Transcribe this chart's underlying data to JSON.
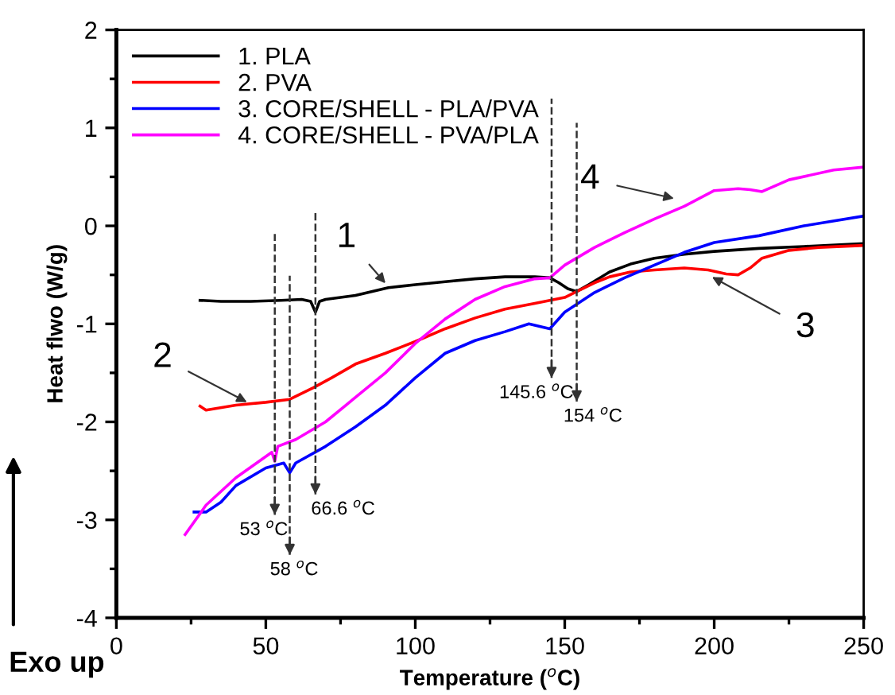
{
  "chart_data": {
    "type": "line",
    "xlabel": "Temperature ($^{o}$C)",
    "ylabel": "Heat flwo (W/g)",
    "xlim": [
      0,
      250
    ],
    "ylim": [
      -4,
      2
    ],
    "xticks": [
      0,
      50,
      100,
      150,
      200,
      250
    ],
    "yticks": [
      -4,
      -3,
      -2,
      -1,
      0,
      1,
      2
    ],
    "legend": "top left",
    "grid": false,
    "marker": "none",
    "line_style": "solid",
    "series": [
      {
        "name": "1. PLA",
        "color": "#000000",
        "x": [
          28,
          35,
          45,
          55,
          62,
          65,
          66.6,
          68,
          70,
          80,
          91,
          100,
          110,
          120,
          130,
          140,
          145,
          148,
          151,
          154,
          158,
          165,
          172,
          180,
          190,
          200,
          215,
          230,
          250
        ],
        "values": [
          -0.76,
          -0.77,
          -0.77,
          -0.76,
          -0.75,
          -0.77,
          -0.88,
          -0.77,
          -0.75,
          -0.71,
          -0.63,
          -0.6,
          -0.57,
          -0.54,
          -0.52,
          -0.52,
          -0.53,
          -0.58,
          -0.64,
          -0.67,
          -0.6,
          -0.47,
          -0.39,
          -0.33,
          -0.29,
          -0.26,
          -0.23,
          -0.21,
          -0.18
        ]
      },
      {
        "name": "2. PVA",
        "color": "#ff0000",
        "x": [
          28,
          30,
          40,
          50,
          58,
          66,
          72,
          80,
          90,
          100,
          110,
          120,
          130,
          140,
          145,
          150,
          154,
          160,
          165,
          172,
          180,
          190,
          198,
          204,
          208,
          212,
          216,
          225,
          235,
          250
        ],
        "values": [
          -1.84,
          -1.88,
          -1.83,
          -1.8,
          -1.77,
          -1.65,
          -1.55,
          -1.41,
          -1.3,
          -1.18,
          -1.05,
          -0.94,
          -0.85,
          -0.79,
          -0.76,
          -0.73,
          -0.67,
          -0.58,
          -0.52,
          -0.47,
          -0.45,
          -0.43,
          -0.45,
          -0.49,
          -0.5,
          -0.43,
          -0.33,
          -0.25,
          -0.22,
          -0.2
        ]
      },
      {
        "name": "3. CORE/SHELL - PLA/PVA",
        "color": "#0000ff",
        "x": [
          26,
          30,
          35,
          40,
          50,
          56,
          58,
          60,
          70,
          80,
          90,
          100,
          110,
          120,
          130,
          138,
          145,
          150,
          160,
          170,
          180,
          190,
          200,
          215,
          230,
          250
        ],
        "values": [
          -2.92,
          -2.92,
          -2.82,
          -2.65,
          -2.47,
          -2.42,
          -2.52,
          -2.42,
          -2.25,
          -2.05,
          -1.83,
          -1.55,
          -1.3,
          -1.17,
          -1.08,
          -1.0,
          -1.05,
          -0.88,
          -0.68,
          -0.53,
          -0.4,
          -0.27,
          -0.17,
          -0.1,
          0.0,
          0.1
        ]
      },
      {
        "name": "4. CORE/SHELL - PVA/PLA",
        "color": "#ff00ff",
        "x": [
          23,
          30,
          40,
          52,
          53,
          54,
          60,
          70,
          80,
          90,
          100,
          110,
          120,
          130,
          140,
          145,
          150,
          160,
          170,
          180,
          190,
          200,
          208,
          212,
          216,
          225,
          240,
          250
        ],
        "values": [
          -3.15,
          -2.85,
          -2.57,
          -2.31,
          -2.4,
          -2.25,
          -2.18,
          -2.0,
          -1.75,
          -1.5,
          -1.2,
          -0.95,
          -0.75,
          -0.62,
          -0.54,
          -0.53,
          -0.4,
          -0.22,
          -0.07,
          0.07,
          0.2,
          0.36,
          0.38,
          0.37,
          0.35,
          0.47,
          0.57,
          0.6
        ]
      }
    ],
    "annotations": [
      {
        "text": "1",
        "x": 91,
        "y": -0.62
      },
      {
        "text": "2",
        "x": 45,
        "y": -1.82
      },
      {
        "text": "3",
        "x": 198,
        "y": -0.5
      },
      {
        "text": "4",
        "x": 188,
        "y": 0.27
      },
      "Exo up"
    ],
    "ref_lines": [
      {
        "axis": "x",
        "value": 53,
        "label": "53 $^{o}$C",
        "line_style": "dashed",
        "color": "#333333"
      },
      {
        "axis": "x",
        "value": 58,
        "label": "58 $^{o}$C",
        "line_style": "dashed",
        "color": "#333333"
      },
      {
        "axis": "x",
        "value": 66.6,
        "label": "66.6 $^{o}$C",
        "line_style": "dashed",
        "color": "#333333"
      },
      {
        "axis": "x",
        "value": 145.6,
        "label": "145.6 $^{o}$C",
        "line_style": "dashed",
        "color": "#333333"
      },
      {
        "axis": "x",
        "value": 154,
        "label": "154 $^{o}$C",
        "line_style": "dashed",
        "color": "#333333"
      }
    ]
  }
}
